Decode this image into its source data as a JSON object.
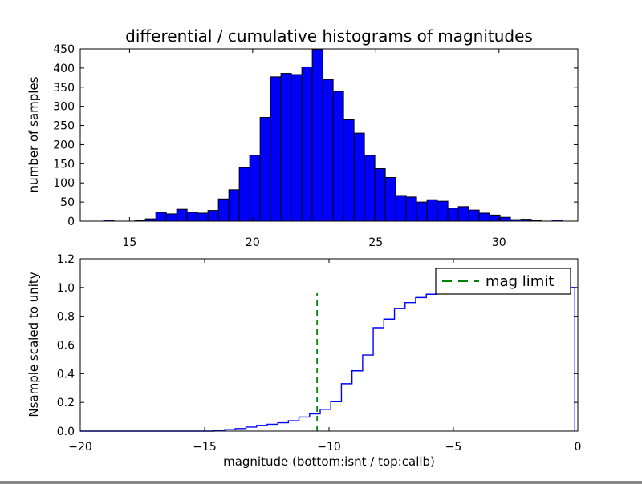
{
  "figure": {
    "title": "differential / cumulative histograms of magnitudes",
    "background": "#ffffff",
    "frame_color": "#000000"
  },
  "chart_data": [
    {
      "type": "bar",
      "subtype": "histogram",
      "title": "differential / cumulative histograms of magnitudes",
      "xlabel": "",
      "ylabel": "number of samples",
      "xlim": [
        13.0,
        33.2
      ],
      "ylim": [
        0,
        450
      ],
      "xticks": [
        15,
        20,
        25,
        30
      ],
      "xtick_labels": [
        "15",
        "20",
        "25",
        "30"
      ],
      "yticks": [
        0,
        50,
        100,
        150,
        200,
        250,
        300,
        350,
        400,
        450
      ],
      "ytick_labels": [
        "0",
        "50",
        "100",
        "150",
        "200",
        "250",
        "300",
        "350",
        "400",
        "450"
      ],
      "grid": false,
      "bin_start": 13.95,
      "bin_width": 0.4235,
      "counts": [
        3,
        0,
        0,
        2,
        6,
        23,
        19,
        31,
        23,
        21,
        28,
        58,
        82,
        140,
        172,
        271,
        377,
        386,
        383,
        403,
        448,
        370,
        339,
        265,
        230,
        172,
        137,
        114,
        67,
        63,
        50,
        56,
        52,
        34,
        38,
        29,
        21,
        16,
        10,
        4,
        5,
        2,
        0,
        3
      ],
      "bar_fill": "#0000ff",
      "bar_edge": "#000000"
    },
    {
      "type": "line",
      "subtype": "cumulative-step-histogram",
      "title": "",
      "xlabel": "magnitude (bottom:isnt / top:calib)",
      "ylabel": "Nsample scaled to unity",
      "xlim": [
        -20,
        0
      ],
      "ylim": [
        0.0,
        1.2
      ],
      "xticks": [
        -20,
        -15,
        -10,
        -5,
        0
      ],
      "xtick_labels": [
        "−20",
        "−15",
        "−10",
        "−5",
        "0"
      ],
      "yticks": [
        0.0,
        0.2,
        0.4,
        0.6,
        0.8,
        1.0,
        1.2
      ],
      "ytick_labels": [
        "0.0",
        "0.2",
        "0.4",
        "0.6",
        "0.8",
        "1.0",
        "1.2"
      ],
      "grid": false,
      "bin_start": -14.62,
      "bin_width": 0.4265,
      "cumulative_values": [
        0.005,
        0.01,
        0.018,
        0.028,
        0.04,
        0.048,
        0.058,
        0.072,
        0.098,
        0.12,
        0.152,
        0.205,
        0.33,
        0.42,
        0.53,
        0.72,
        0.78,
        0.855,
        0.895,
        0.93,
        0.953,
        0.962,
        0.97,
        0.976,
        0.979,
        0.982,
        0.985,
        0.987,
        0.989,
        0.991,
        0.993,
        0.995,
        0.997,
        1.0
      ],
      "line_color": "#0000ff",
      "vline": {
        "x": -10.48,
        "ymin": 0.0,
        "ymax": 0.96,
        "color": "#008000",
        "style": "dashed",
        "label": "mag limit"
      },
      "legend": {
        "label": "mag limit",
        "position": "upper right",
        "sample_color": "#008000",
        "sample_style": "dashed"
      }
    }
  ]
}
